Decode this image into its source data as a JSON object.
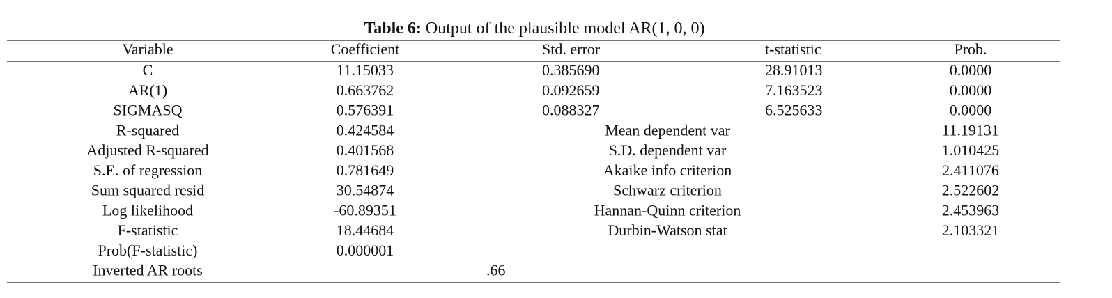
{
  "caption": {
    "label": "Table 6:",
    "text": "Output of the plausible model AR(1, 0, 0)"
  },
  "table": {
    "header": [
      "Variable",
      "Coefficient",
      "Std. error",
      "t-statistic",
      "Prob."
    ],
    "coefficients": [
      [
        "C",
        "11.15033",
        "0.385690",
        "28.91013",
        "0.0000"
      ],
      [
        "AR(1)",
        "0.663762",
        "0.092659",
        "7.163523",
        "0.0000"
      ],
      [
        "SIGMASQ",
        "0.576391",
        "0.088327",
        "6.525633",
        "0.0000"
      ]
    ],
    "statistics": [
      [
        "R-squared",
        "0.424584",
        "Mean dependent var",
        "11.19131"
      ],
      [
        "Adjusted R-squared",
        "0.401568",
        "S.D. dependent var",
        "1.010425"
      ],
      [
        "S.E. of regression",
        "0.781649",
        "Akaike info criterion",
        "2.411076"
      ],
      [
        "Sum squared resid",
        "30.54874",
        "Schwarz criterion",
        "2.522602"
      ],
      [
        "Log likelihood",
        "-60.89351",
        "Hannan-Quinn criterion",
        "2.453963"
      ],
      [
        "F-statistic",
        "18.44684",
        "Durbin-Watson stat",
        "2.103321"
      ]
    ],
    "extra": [
      [
        "Prob(F-statistic)",
        "0.000001"
      ],
      [
        "Inverted AR roots",
        ".66"
      ]
    ]
  }
}
